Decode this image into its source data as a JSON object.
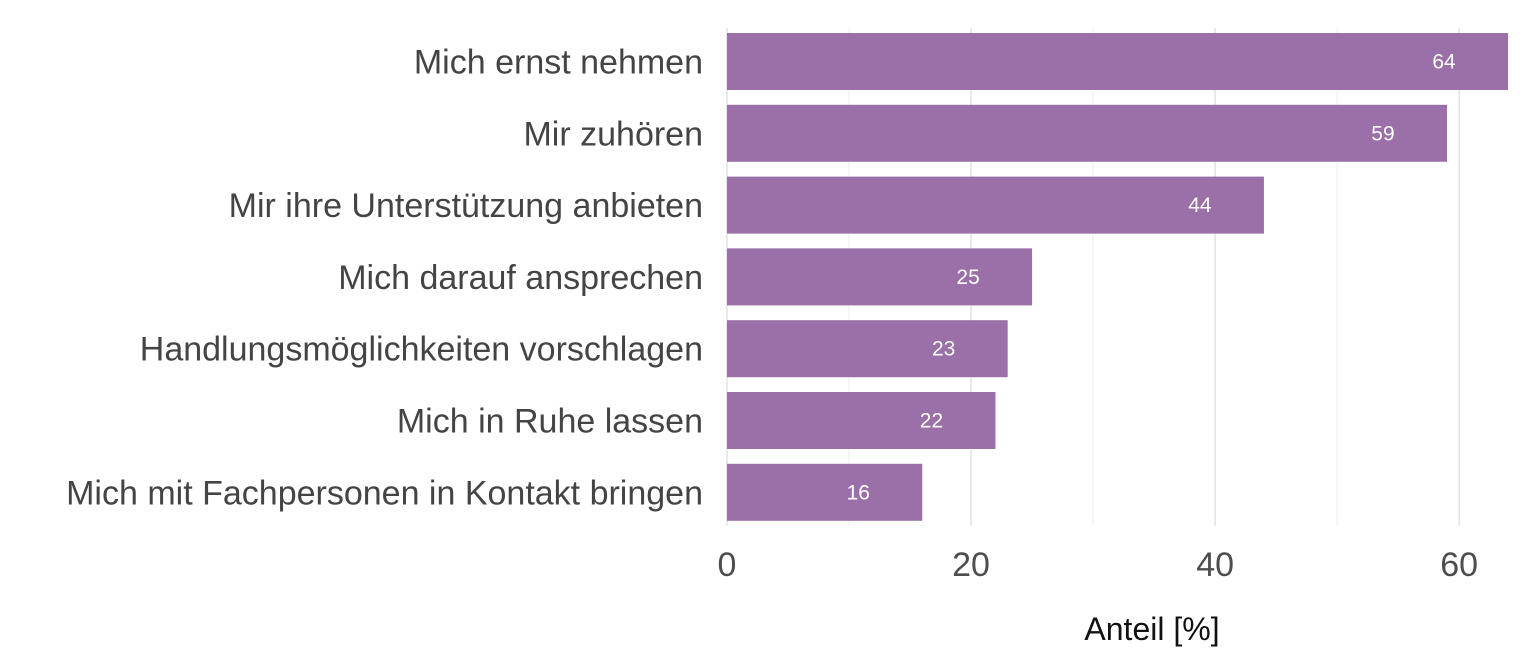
{
  "chart_data": {
    "type": "bar",
    "orientation": "horizontal",
    "categories": [
      "Mich ernst nehmen",
      "Mir zuhören",
      "Mir ihre Unterstützung anbieten",
      "Mich darauf ansprechen",
      "Handlungsmöglichkeiten vorschlagen",
      "Mich in Ruhe lassen",
      "Mich mit Fachpersonen in Kontakt bringen"
    ],
    "values": [
      64,
      59,
      44,
      25,
      23,
      22,
      16
    ],
    "value_labels": [
      "64",
      "59",
      "44",
      "25",
      "23",
      "22",
      "16"
    ],
    "xlabel": "Anteil [%]",
    "ylabel": "",
    "xlim": [
      0,
      64
    ],
    "xticks": [
      0,
      20,
      40,
      60
    ],
    "xtick_labels": [
      "0",
      "20",
      "40",
      "60"
    ],
    "minor_xticks": [
      10,
      30,
      50
    ],
    "grid": true,
    "bar_color": "#9b6fa7",
    "label_color": "#ffffff"
  }
}
